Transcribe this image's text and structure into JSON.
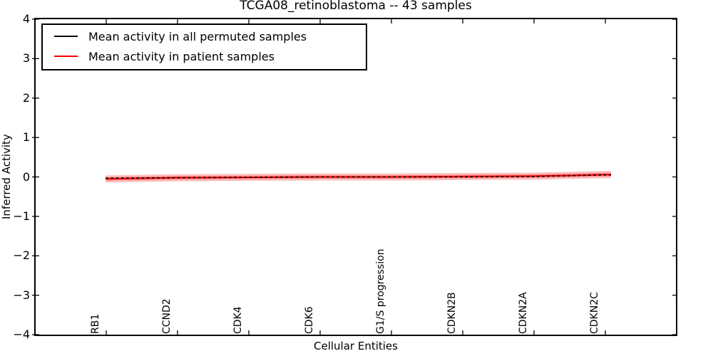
{
  "chart_data": {
    "type": "line",
    "title": "TCGA08_retinoblastoma -- 43 samples",
    "xlabel": "Cellular Entities",
    "ylabel": "Inferred Activity",
    "ylim": [
      -4,
      4
    ],
    "ytick_values": [
      4,
      3,
      2,
      1,
      0,
      -1,
      -2,
      -3,
      -4
    ],
    "ytick_labels": [
      "4",
      "3",
      "2",
      "1",
      "0",
      "−1",
      "−2",
      "−3",
      "−4"
    ],
    "categories": [
      "RB1",
      "CCND2",
      "CDK4",
      "CDK6",
      "G1/S progression",
      "CDKN2B",
      "CDKN2A",
      "CDKN2C"
    ],
    "series": [
      {
        "name": "Mean activity in all permuted samples",
        "color": "#000000",
        "linestyle": "dashed",
        "values": [
          -0.03,
          -0.02,
          -0.01,
          0.0,
          0.0,
          0.0,
          0.01,
          0.05
        ]
      },
      {
        "name": "Mean activity in patient samples",
        "color": "#ff0000",
        "linestyle": "solid",
        "values": [
          -0.05,
          -0.02,
          -0.01,
          0.0,
          0.0,
          0.01,
          0.02,
          0.06
        ],
        "band_color": "#ff0000",
        "band_halfwidths": [
          0.09,
          0.045
        ]
      }
    ],
    "legend_position": "upper left",
    "grid": false,
    "axis_color": "#000000",
    "background_color": "#ffffff"
  }
}
